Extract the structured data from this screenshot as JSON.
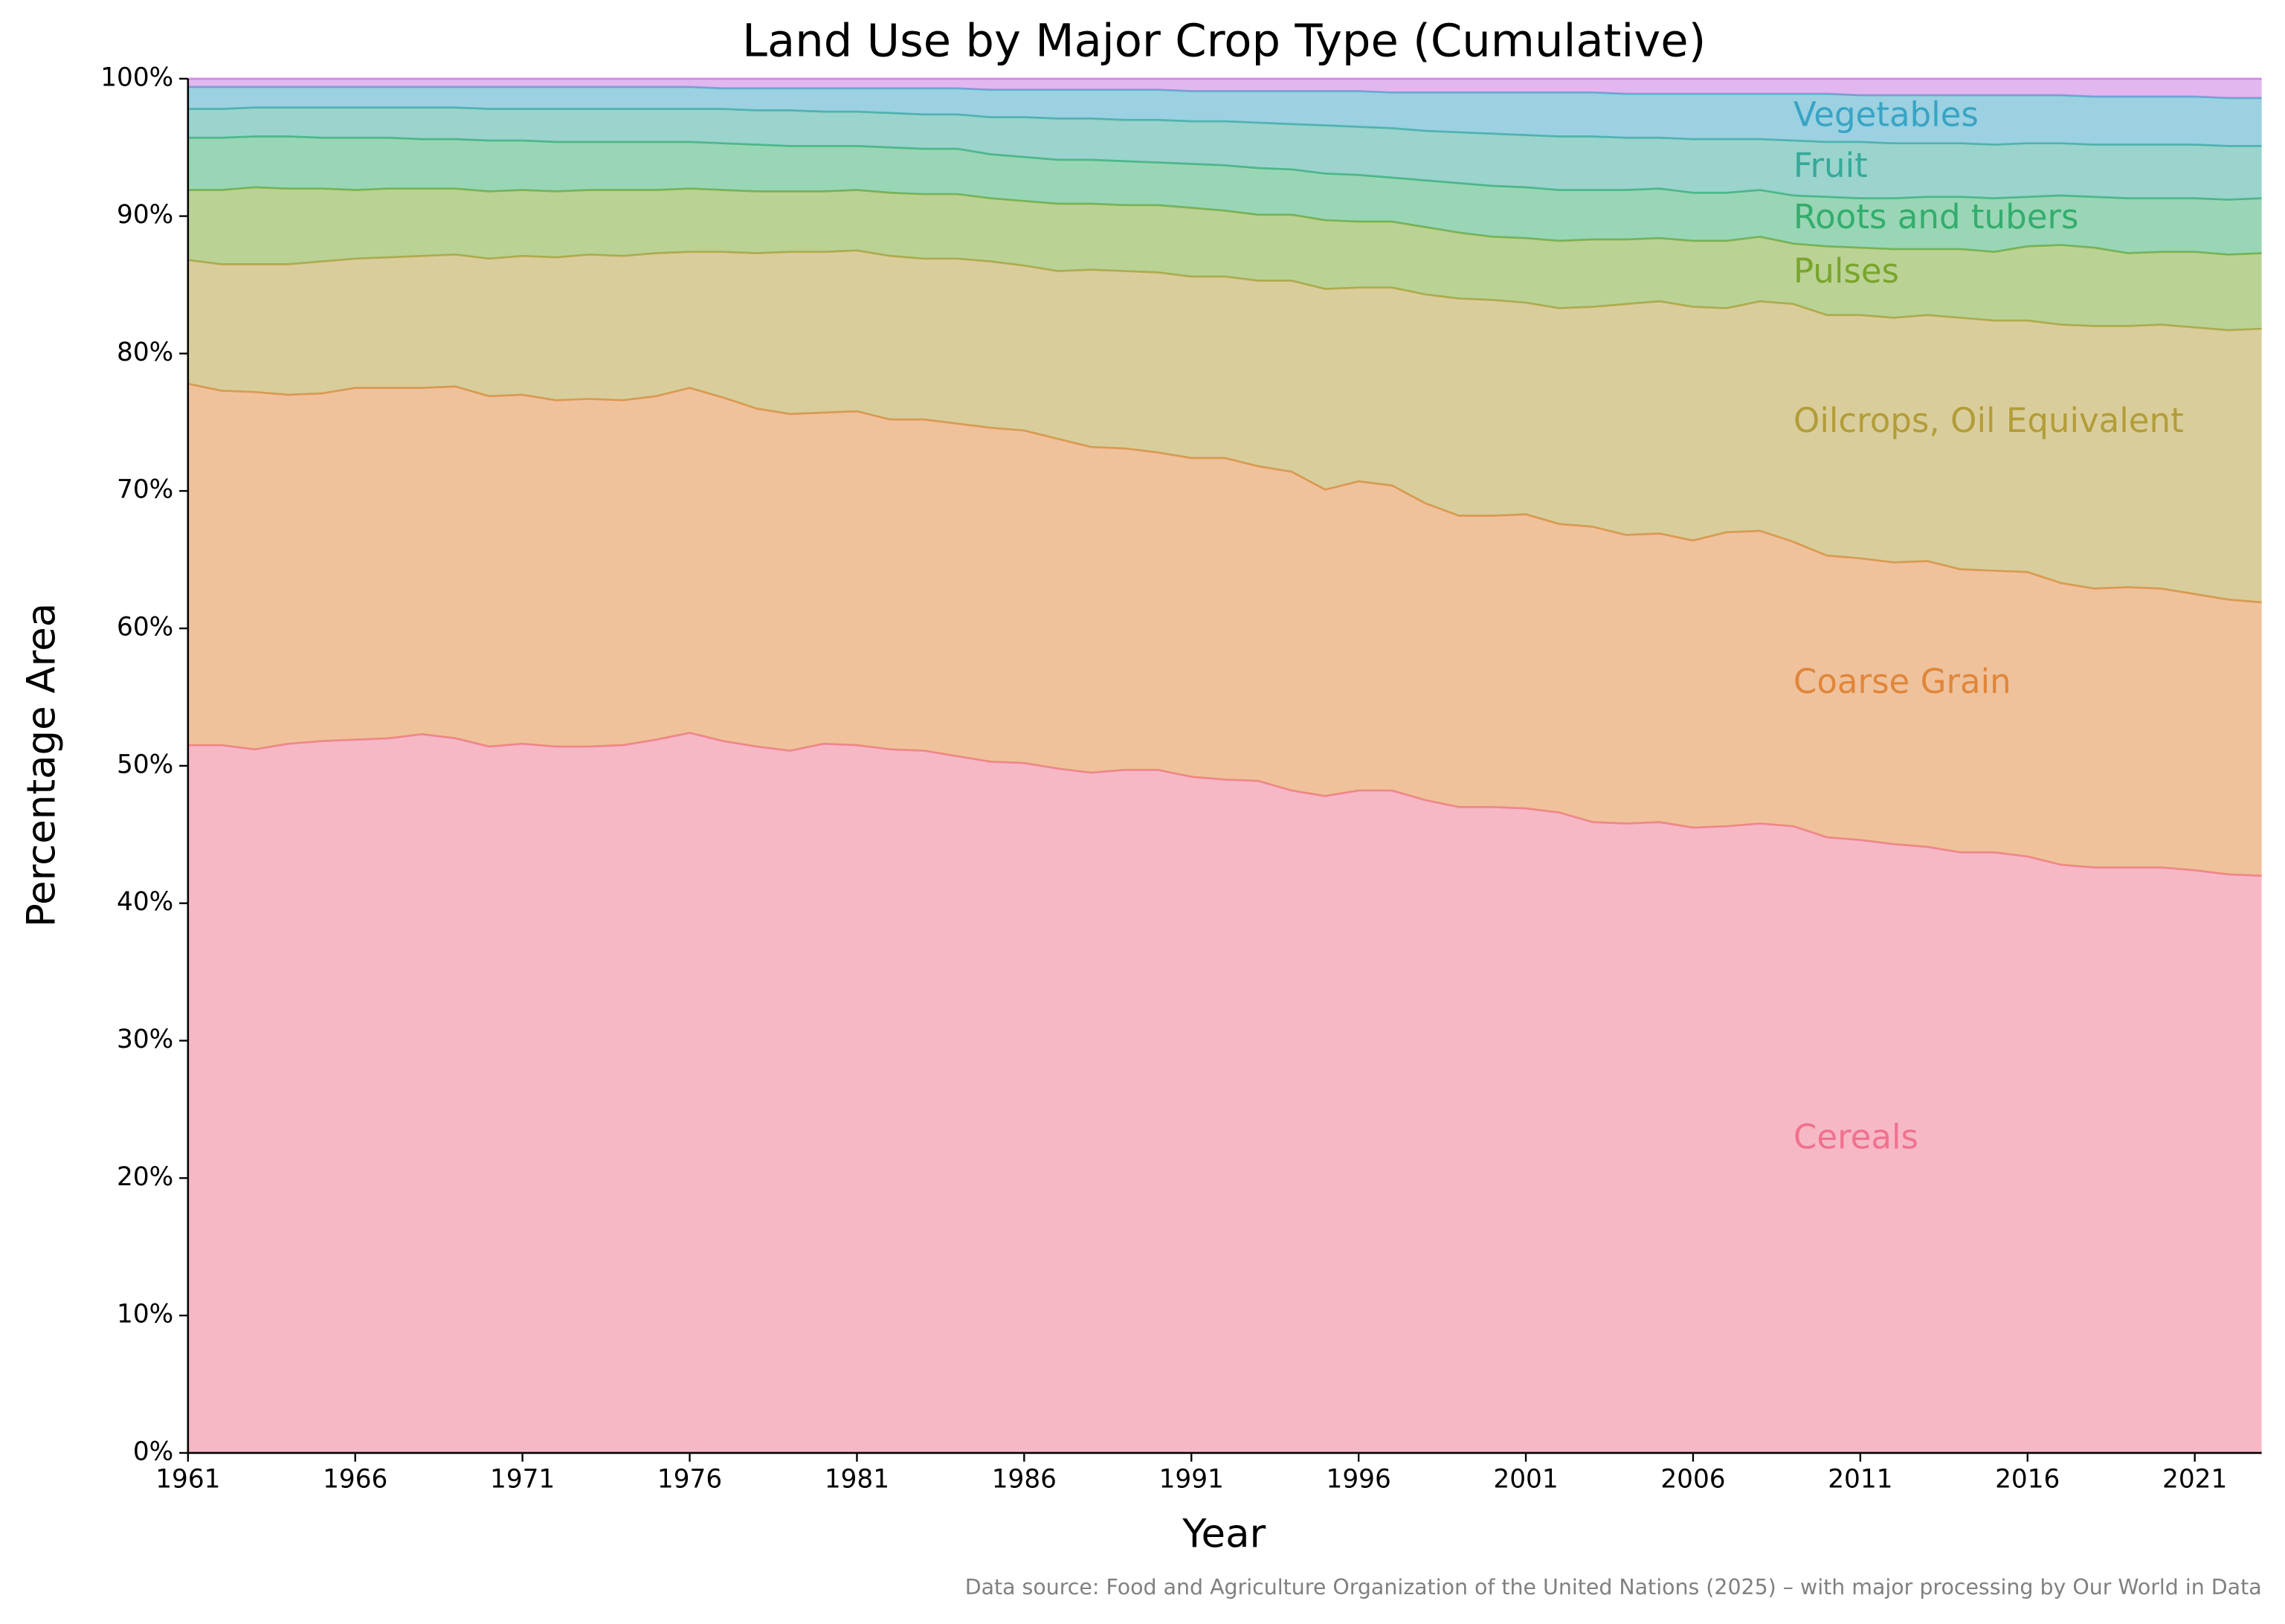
{
  "chart_data": {
    "type": "stacked_area",
    "title": "Land Use by Major Crop Type (Cumulative)",
    "x_label": "Year",
    "y_label": "Percentage Area",
    "source": "Data source: Food and Agriculture Organization of the United Nations (2025) – with major processing by Our World in Data",
    "x": [
      1961,
      1962,
      1963,
      1964,
      1965,
      1966,
      1967,
      1968,
      1969,
      1970,
      1971,
      1972,
      1973,
      1974,
      1975,
      1976,
      1977,
      1978,
      1979,
      1980,
      1981,
      1982,
      1983,
      1984,
      1985,
      1986,
      1987,
      1988,
      1989,
      1990,
      1991,
      1992,
      1993,
      1994,
      1995,
      1996,
      1997,
      1998,
      1999,
      2000,
      2001,
      2002,
      2003,
      2004,
      2005,
      2006,
      2007,
      2008,
      2009,
      2010,
      2011,
      2012,
      2013,
      2014,
      2015,
      2016,
      2017,
      2018,
      2019,
      2020,
      2021,
      2022,
      2023
    ],
    "xlim": [
      1961,
      2023
    ],
    "xticks": [
      1961,
      1966,
      1971,
      1976,
      1981,
      1986,
      1991,
      1996,
      2001,
      2006,
      2011,
      2016,
      2021
    ],
    "ylim": [
      0,
      100
    ],
    "yticks": [
      {
        "value": 0,
        "label": "0%"
      },
      {
        "value": 10,
        "label": "10%"
      },
      {
        "value": 20,
        "label": "20%"
      },
      {
        "value": 30,
        "label": "30%"
      },
      {
        "value": 40,
        "label": "40%"
      },
      {
        "value": 50,
        "label": "50%"
      },
      {
        "value": 60,
        "label": "60%"
      },
      {
        "value": 70,
        "label": "70%"
      },
      {
        "value": 80,
        "label": "80%"
      },
      {
        "value": 90,
        "label": "90%"
      },
      {
        "value": 100,
        "label": "100%"
      }
    ],
    "grid": false,
    "series": [
      {
        "name": "Cereals",
        "color": "#f0718e",
        "values": [
          51.5,
          51.5,
          51.2,
          51.6,
          51.8,
          51.9,
          52.0,
          52.3,
          52.0,
          51.4,
          51.6,
          51.4,
          51.4,
          51.5,
          51.9,
          52.4,
          51.8,
          51.4,
          51.1,
          51.6,
          51.5,
          51.2,
          51.1,
          50.7,
          50.3,
          50.2,
          49.8,
          49.5,
          49.7,
          49.7,
          49.2,
          49.0,
          48.9,
          48.2,
          47.8,
          48.2,
          48.2,
          47.5,
          47.0,
          47.0,
          46.9,
          46.6,
          45.9,
          45.8,
          45.9,
          45.5,
          45.6,
          45.8,
          45.6,
          44.8,
          44.6,
          44.3,
          44.1,
          43.7,
          43.7,
          43.4,
          42.8,
          42.6,
          42.6,
          42.6,
          42.4,
          42.1,
          42.0
        ]
      },
      {
        "name": "Coarse Grain",
        "color": "#e0863a",
        "values": [
          26.3,
          25.8,
          26.0,
          25.4,
          25.3,
          25.6,
          25.5,
          25.2,
          25.6,
          25.5,
          25.4,
          25.2,
          25.3,
          25.1,
          25.0,
          25.1,
          25.0,
          24.6,
          24.5,
          24.1,
          24.3,
          24.0,
          24.1,
          24.2,
          24.3,
          24.2,
          24.0,
          23.7,
          23.4,
          23.1,
          23.2,
          23.4,
          22.9,
          23.2,
          22.3,
          22.5,
          22.2,
          21.6,
          21.2,
          21.2,
          21.4,
          21.0,
          21.5,
          21.0,
          21.0,
          20.9,
          21.4,
          21.3,
          20.7,
          20.5,
          20.5,
          20.5,
          20.8,
          20.6,
          20.5,
          20.7,
          20.5,
          20.3,
          20.4,
          20.3,
          20.1,
          20.0,
          19.9
        ]
      },
      {
        "name": "Oilcrops, Oil Equivalent",
        "color": "#b39d38",
        "values": [
          9.0,
          9.2,
          9.3,
          9.5,
          9.6,
          9.4,
          9.5,
          9.6,
          9.6,
          10.0,
          10.1,
          10.4,
          10.5,
          10.5,
          10.4,
          9.9,
          10.6,
          11.3,
          11.8,
          11.7,
          11.7,
          11.9,
          11.7,
          12.0,
          12.1,
          12.0,
          12.2,
          12.9,
          12.9,
          13.1,
          13.2,
          13.2,
          13.5,
          13.9,
          14.6,
          14.1,
          14.4,
          15.2,
          15.8,
          15.7,
          15.4,
          15.7,
          16.0,
          16.8,
          16.9,
          17.0,
          16.3,
          16.7,
          17.3,
          17.5,
          17.7,
          17.8,
          17.9,
          18.3,
          18.2,
          18.3,
          18.8,
          19.1,
          19.0,
          19.2,
          19.4,
          19.6,
          19.9
        ]
      },
      {
        "name": "Pulses",
        "color": "#78a52c",
        "values": [
          5.1,
          5.4,
          5.6,
          5.5,
          5.3,
          5.0,
          5.0,
          4.9,
          4.8,
          4.9,
          4.8,
          4.8,
          4.7,
          4.8,
          4.6,
          4.6,
          4.5,
          4.5,
          4.4,
          4.4,
          4.4,
          4.6,
          4.7,
          4.7,
          4.6,
          4.7,
          4.9,
          4.8,
          4.8,
          4.9,
          5.0,
          4.8,
          4.8,
          4.8,
          5.0,
          4.8,
          4.8,
          4.9,
          4.8,
          4.6,
          4.7,
          4.9,
          4.9,
          4.7,
          4.6,
          4.8,
          4.9,
          4.7,
          4.4,
          5.0,
          4.9,
          5.0,
          4.8,
          5.0,
          5.0,
          5.4,
          5.8,
          5.7,
          5.3,
          5.3,
          5.5,
          5.5,
          5.5
        ]
      },
      {
        "name": "Roots and tubers",
        "color": "#33ad6d",
        "values": [
          3.8,
          3.8,
          3.7,
          3.8,
          3.7,
          3.8,
          3.7,
          3.6,
          3.6,
          3.7,
          3.6,
          3.6,
          3.5,
          3.5,
          3.5,
          3.4,
          3.4,
          3.4,
          3.3,
          3.3,
          3.2,
          3.3,
          3.3,
          3.3,
          3.2,
          3.2,
          3.2,
          3.2,
          3.2,
          3.1,
          3.2,
          3.3,
          3.4,
          3.3,
          3.4,
          3.4,
          3.2,
          3.4,
          3.6,
          3.7,
          3.7,
          3.7,
          3.6,
          3.6,
          3.6,
          3.5,
          3.5,
          3.4,
          3.5,
          3.6,
          3.6,
          3.7,
          3.8,
          3.8,
          3.9,
          3.6,
          3.6,
          3.7,
          4.0,
          3.9,
          3.9,
          4.0,
          4.0
        ]
      },
      {
        "name": "Fruit",
        "color": "#35aa9a",
        "values": [
          2.1,
          2.1,
          2.1,
          2.1,
          2.2,
          2.2,
          2.2,
          2.3,
          2.3,
          2.3,
          2.3,
          2.4,
          2.4,
          2.4,
          2.4,
          2.4,
          2.5,
          2.5,
          2.6,
          2.5,
          2.5,
          2.5,
          2.5,
          2.5,
          2.7,
          2.9,
          3.0,
          3.0,
          3.0,
          3.1,
          3.1,
          3.2,
          3.3,
          3.3,
          3.5,
          3.5,
          3.6,
          3.6,
          3.7,
          3.8,
          3.8,
          3.9,
          3.9,
          3.8,
          3.7,
          3.9,
          3.9,
          3.7,
          4.0,
          4.0,
          4.1,
          4.0,
          3.9,
          3.9,
          3.9,
          3.9,
          3.8,
          3.8,
          3.9,
          3.9,
          3.9,
          3.9,
          3.8
        ]
      },
      {
        "name": "Vegetables",
        "color": "#38a4c4",
        "values": [
          1.6,
          1.6,
          1.5,
          1.5,
          1.5,
          1.5,
          1.5,
          1.5,
          1.5,
          1.6,
          1.6,
          1.6,
          1.6,
          1.6,
          1.6,
          1.6,
          1.5,
          1.6,
          1.6,
          1.7,
          1.7,
          1.8,
          1.9,
          1.9,
          2.0,
          2.0,
          2.1,
          2.1,
          2.2,
          2.2,
          2.2,
          2.2,
          2.3,
          2.4,
          2.5,
          2.6,
          2.6,
          2.8,
          2.9,
          3.0,
          3.1,
          3.2,
          3.2,
          3.2,
          3.2,
          3.3,
          3.3,
          3.3,
          3.4,
          3.5,
          3.4,
          3.5,
          3.5,
          3.5,
          3.6,
          3.5,
          3.5,
          3.5,
          3.5,
          3.5,
          3.5,
          3.5,
          3.5
        ]
      },
      {
        "color": "#c56fe0",
        "values": [
          0.6,
          0.6,
          0.6,
          0.6,
          0.6,
          0.6,
          0.6,
          0.6,
          0.6,
          0.6,
          0.6,
          0.6,
          0.6,
          0.6,
          0.6,
          0.6,
          0.7,
          0.7,
          0.7,
          0.7,
          0.7,
          0.7,
          0.7,
          0.7,
          0.8,
          0.8,
          0.8,
          0.8,
          0.8,
          0.8,
          0.9,
          0.9,
          0.9,
          0.9,
          0.9,
          0.9,
          1.0,
          1.0,
          1.0,
          1.0,
          1.0,
          1.0,
          1.0,
          1.1,
          1.1,
          1.1,
          1.1,
          1.1,
          1.1,
          1.1,
          1.2,
          1.2,
          1.2,
          1.2,
          1.2,
          1.2,
          1.2,
          1.3,
          1.3,
          1.3,
          1.3,
          1.4,
          1.4
        ]
      }
    ]
  }
}
